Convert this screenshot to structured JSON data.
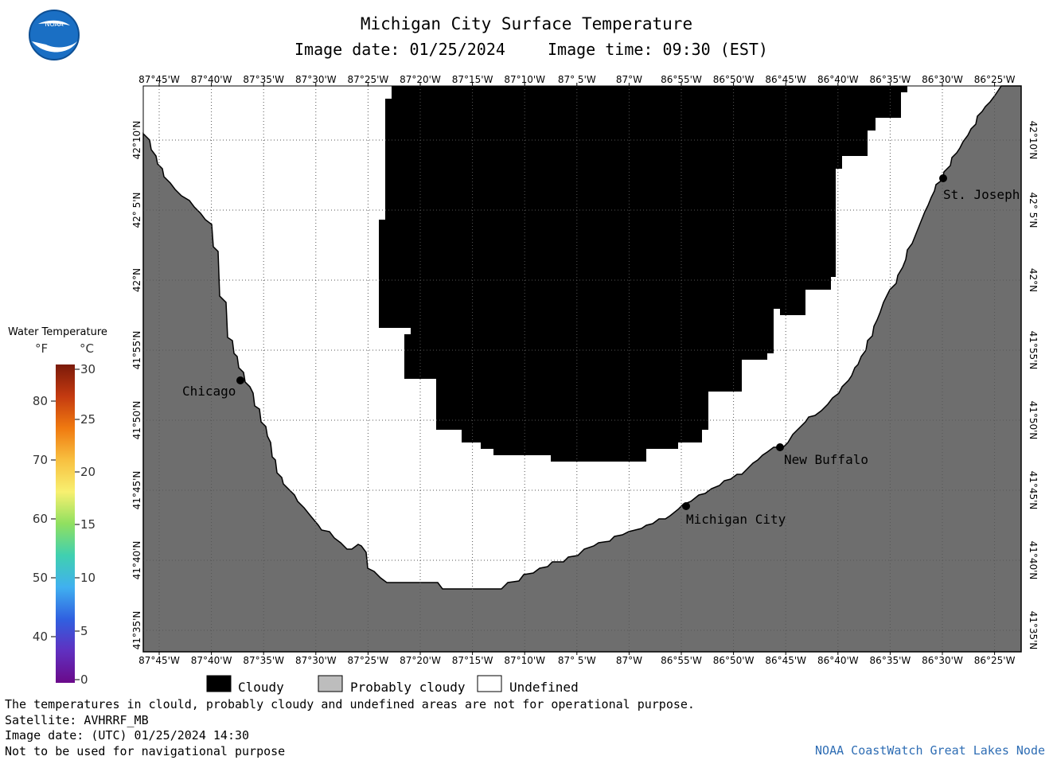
{
  "header": {
    "title": "Michigan City Surface Temperature",
    "image_date": "Image date: 01/25/2024",
    "image_time": "Image time: 09:30 (EST)"
  },
  "logo": {
    "text": "NOAA"
  },
  "map": {
    "colors": {
      "land": "#6e6e6e",
      "cloudy": "#000000",
      "probably_cloudy": "#bdbdbd",
      "undefined": "#ffffff",
      "grid": "#555555"
    },
    "lon_labels": [
      "87°45'W",
      "87°40'W",
      "87°35'W",
      "87°30'W",
      "87°25'W",
      "87°20'W",
      "87°15'W",
      "87°10'W",
      "87° 5'W",
      "87°W",
      "86°55'W",
      "86°50'W",
      "86°45'W",
      "86°40'W",
      "86°35'W",
      "86°30'W",
      "86°25'W"
    ],
    "lat_labels": [
      "42°10'N",
      "42° 5'N",
      "42°N",
      "41°55'N",
      "41°50'N",
      "41°45'N",
      "41°40'N",
      "41°35'N"
    ],
    "cities": [
      {
        "name": "Chicago"
      },
      {
        "name": "St. Joseph"
      },
      {
        "name": "New Buffalo"
      },
      {
        "name": "Michigan City"
      }
    ]
  },
  "temperature_scale": {
    "title": "Water Temperature",
    "unit_f": "°F",
    "unit_c": "°C",
    "f_ticks": [
      "80",
      "70",
      "60",
      "50",
      "40"
    ],
    "c_ticks": [
      "30",
      "25",
      "20",
      "15",
      "10",
      "5",
      "0"
    ],
    "gradient_colors": [
      "#7a1a0a",
      "#c43a10",
      "#f07a10",
      "#f8c040",
      "#f8f070",
      "#90e060",
      "#40d0b0",
      "#40b0f0",
      "#3060e0",
      "#6030c0",
      "#6a0a8a"
    ]
  },
  "legend": {
    "cloudy": "Cloudy",
    "probably_cloudy": "Probably cloudy",
    "undefined": "Undefined"
  },
  "footer": {
    "note": "The temperatures in clould, probably cloudy and undefined areas are not for operational purpose.",
    "satellite": "Satellite: AVHRRF_MB",
    "utc_date": "Image date: (UTC) 01/25/2024  14:30",
    "disclaimer": "Not to be used for navigational purpose",
    "credit": "NOAA CoastWatch Great Lakes Node"
  }
}
